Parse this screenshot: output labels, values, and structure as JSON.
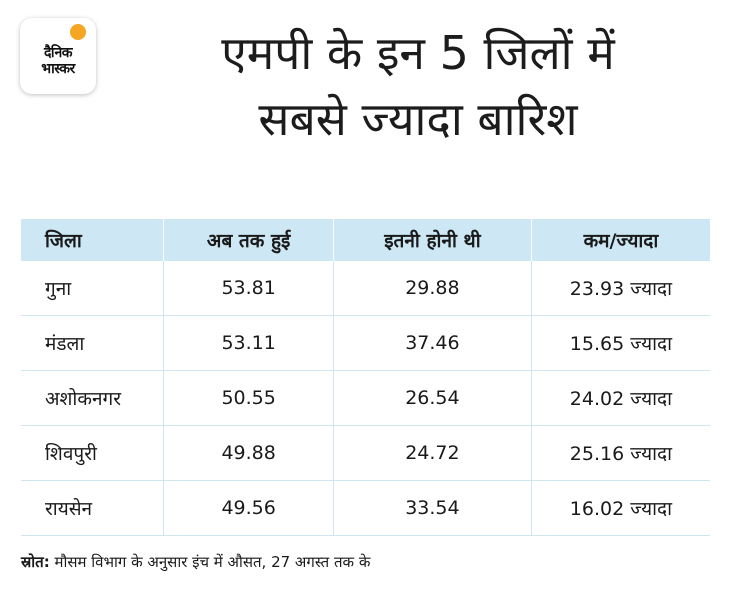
{
  "logo": {
    "line1": "दैनिक",
    "line2": "भास्कर",
    "accent": "#f5a623"
  },
  "title": {
    "line1": "एमपी के इन 5 जिलों में",
    "line2": "सबसे ज्यादा बारिश"
  },
  "table": {
    "header_bg": "#cde8f4",
    "columns": [
      "जिला",
      "अब तक हुई",
      "इतनी होनी थी",
      "कम/ज्यादा"
    ],
    "rows": [
      {
        "district": "गुना",
        "so_far": "53.81",
        "expected": "29.88",
        "diff": "23.93 ज्यादा"
      },
      {
        "district": "मंडला",
        "so_far": "53.11",
        "expected": "37.46",
        "diff": "15.65 ज्यादा"
      },
      {
        "district": "अशोकनगर",
        "so_far": "50.55",
        "expected": "26.54",
        "diff": "24.02 ज्यादा"
      },
      {
        "district": "शिवपुरी",
        "so_far": "49.88",
        "expected": "24.72",
        "diff": "25.16 ज्यादा"
      },
      {
        "district": "रायसेन",
        "so_far": "49.56",
        "expected": "33.54",
        "diff": "16.02 ज्यादा"
      }
    ]
  },
  "source": {
    "label": "स्रोत:",
    "text": " मौसम विभाग के अनुसार इंच में औसत, 27 अगस्त तक के"
  }
}
